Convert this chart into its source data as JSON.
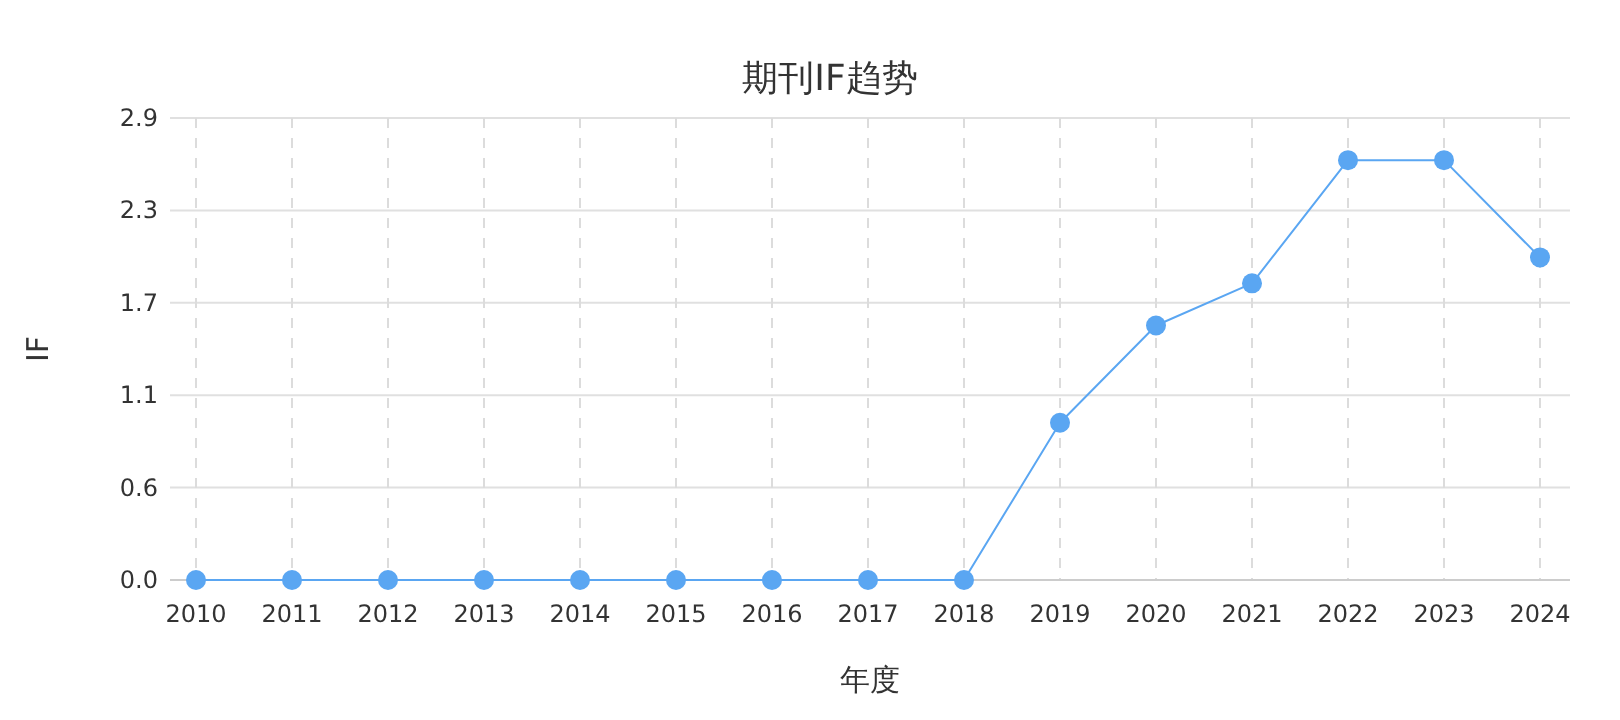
{
  "chart_data": {
    "type": "line",
    "title": "期刊IF趋势",
    "xlabel": "年度",
    "ylabel": "IF",
    "categories": [
      "2010",
      "2011",
      "2012",
      "2013",
      "2014",
      "2015",
      "2016",
      "2017",
      "2018",
      "2019",
      "2020",
      "2021",
      "2022",
      "2023",
      "2024"
    ],
    "series": [
      {
        "color": "#5aa6f2",
        "values": [
          0,
          0,
          0,
          0,
          0,
          0,
          0,
          0,
          0,
          0.97,
          1.57,
          1.83,
          2.59,
          2.59,
          1.99
        ]
      }
    ],
    "ylim": [
      0,
      2.85
    ],
    "yticks": [
      {
        "value": 0,
        "label": "0.0"
      },
      {
        "value": 0.57,
        "label": "0.6"
      },
      {
        "value": 1.14,
        "label": "1.1"
      },
      {
        "value": 1.71,
        "label": "1.7"
      },
      {
        "value": 2.28,
        "label": "2.3"
      },
      {
        "value": 2.85,
        "label": "2.9"
      }
    ],
    "grid": true,
    "marker": "circle",
    "line_style": "solid"
  }
}
